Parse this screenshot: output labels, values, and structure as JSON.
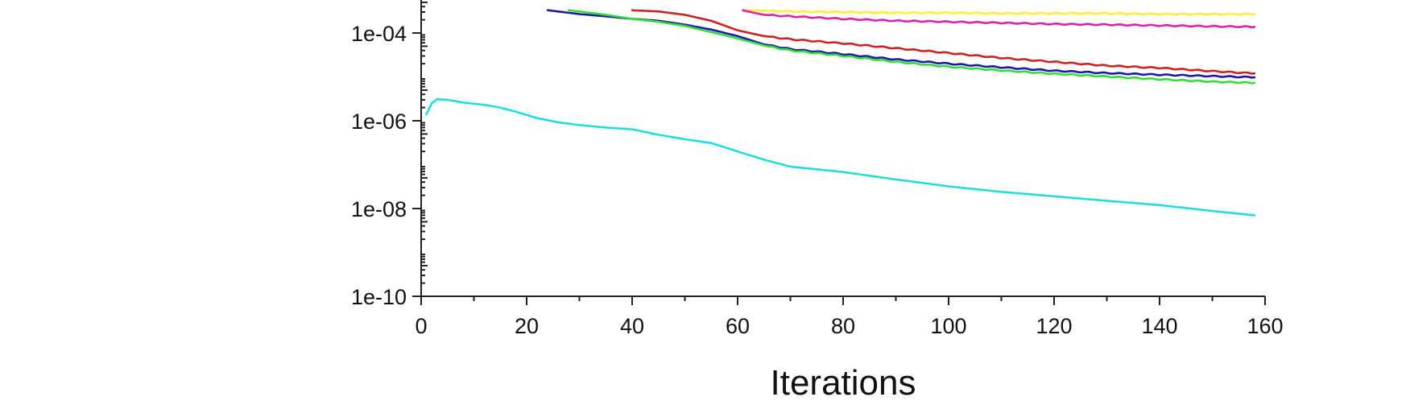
{
  "chart_data": {
    "type": "line",
    "title": "",
    "xlabel": "Iterations",
    "ylabel": "",
    "xscale": "linear",
    "yscale": "log",
    "xlim": [
      0,
      160
    ],
    "ylim": [
      1e-10,
      0.001
    ],
    "xticks": [
      0,
      20,
      40,
      60,
      80,
      100,
      120,
      140,
      160
    ],
    "xtick_labels": [
      "0",
      "20",
      "40",
      "60",
      "80",
      "100",
      "120",
      "140",
      "160"
    ],
    "yticks": [
      1e-10,
      1e-08,
      1e-06,
      0.0001
    ],
    "ytick_labels": [
      "1e-10",
      "1e-08",
      "1e-06",
      "1e-04"
    ],
    "grid": false,
    "legend": false,
    "series": [
      {
        "color": "#ffee33",
        "x": [
          62,
          70,
          80,
          90,
          100,
          110,
          120,
          130,
          140,
          150,
          158
        ],
        "y": [
          0.00033,
          0.00031,
          0.0003,
          0.00029,
          0.00029,
          0.00028,
          0.00028,
          0.00028,
          0.00027,
          0.00027,
          0.00027
        ]
      },
      {
        "color": "#dd22aa",
        "x": [
          61,
          63,
          65,
          70,
          80,
          90,
          100,
          110,
          120,
          130,
          140,
          150,
          158
        ],
        "y": [
          0.00033,
          0.00029,
          0.00026,
          0.00024,
          0.00021,
          0.00019,
          0.00018,
          0.00017,
          0.00016,
          0.000155,
          0.000148,
          0.000142,
          0.000138
        ]
      },
      {
        "color": "#cc2222",
        "x": [
          40,
          45,
          50,
          55,
          60,
          65,
          70,
          80,
          90,
          100,
          110,
          120,
          130,
          140,
          150,
          158
        ],
        "y": [
          0.00033,
          0.00031,
          0.00026,
          0.00019,
          0.000115,
          8.5e-05,
          7.2e-05,
          5.8e-05,
          4.5e-05,
          3.5e-05,
          2.7e-05,
          2.2e-05,
          1.8e-05,
          1.6e-05,
          1.35e-05,
          1.2e-05
        ]
      },
      {
        "color": "#1a1aaa",
        "x": [
          24,
          30,
          35,
          40,
          45,
          50,
          55,
          60,
          65,
          70,
          80,
          90,
          100,
          110,
          120,
          130,
          140,
          150,
          158
        ],
        "y": [
          0.00033,
          0.00027,
          0.00024,
          0.00021,
          0.00019,
          0.000155,
          0.00012,
          8.5e-05,
          5.5e-05,
          4.3e-05,
          3.3e-05,
          2.5e-05,
          2e-05,
          1.65e-05,
          1.38e-05,
          1.22e-05,
          1.12e-05,
          1.04e-05,
          9.8e-06
        ]
      },
      {
        "color": "#33dd33",
        "x": [
          28,
          30,
          35,
          40,
          45,
          50,
          55,
          60,
          65,
          70,
          80,
          90,
          100,
          110,
          120,
          130,
          140,
          150,
          158
        ],
        "y": [
          0.00033,
          0.00031,
          0.00026,
          0.00021,
          0.00018,
          0.000145,
          0.000105,
          7.5e-05,
          5.2e-05,
          4e-05,
          3e-05,
          2.2e-05,
          1.7e-05,
          1.4e-05,
          1.18e-05,
          1.02e-05,
          8.8e-06,
          7.8e-06,
          7.3e-06
        ]
      },
      {
        "color": "#22dddd",
        "x": [
          1,
          2,
          3,
          5,
          8,
          12,
          15,
          18,
          22,
          26,
          30,
          35,
          40,
          45,
          50,
          55,
          60,
          65,
          70,
          80,
          90,
          100,
          110,
          120,
          130,
          140,
          150,
          158
        ],
        "y": [
          1.4e-06,
          2.5e-06,
          3.1e-06,
          3e-06,
          2.6e-06,
          2.3e-06,
          2e-06,
          1.6e-06,
          1.15e-06,
          9.2e-07,
          8e-07,
          7e-07,
          6.4e-07,
          4.8e-07,
          3.8e-07,
          3.1e-07,
          2e-07,
          1.3e-07,
          9e-08,
          6.8e-08,
          4.6e-08,
          3.2e-08,
          2.4e-08,
          1.9e-08,
          1.5e-08,
          1.2e-08,
          8.8e-09,
          7e-09
        ]
      }
    ]
  }
}
